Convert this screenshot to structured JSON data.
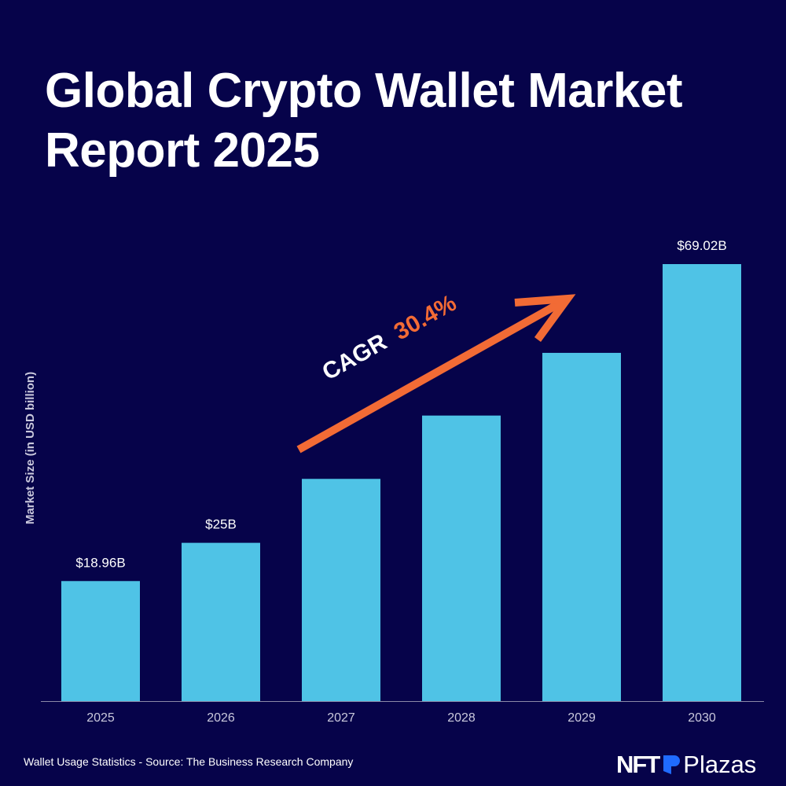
{
  "title": "Global Crypto Wallet Market Report 2025",
  "footer": "Wallet Usage Statistics - Source: The Business Research Company",
  "logo": {
    "nft": "NFT",
    "plazas": "Plazas",
    "brand_color": "#1f6bff"
  },
  "annotation": {
    "label": "CAGR",
    "value": "30.4%",
    "arrow_color": "#f26b35"
  },
  "colors": {
    "background": "#06034a",
    "bar": "#4fc3e6",
    "accent": "#f26b35"
  },
  "chart_data": {
    "type": "bar",
    "categories": [
      "2025",
      "2026",
      "2027",
      "2028",
      "2029",
      "2030"
    ],
    "values": [
      18.96,
      25,
      35.1,
      45.1,
      55.0,
      69.02
    ],
    "data_labels": [
      "$18.96B",
      "$25B",
      "",
      "",
      "",
      "$69.02B"
    ],
    "title": "",
    "xlabel": "",
    "ylabel": "Market Size (in USD billion)",
    "ylim": [
      0,
      69.02
    ],
    "grid": false
  }
}
